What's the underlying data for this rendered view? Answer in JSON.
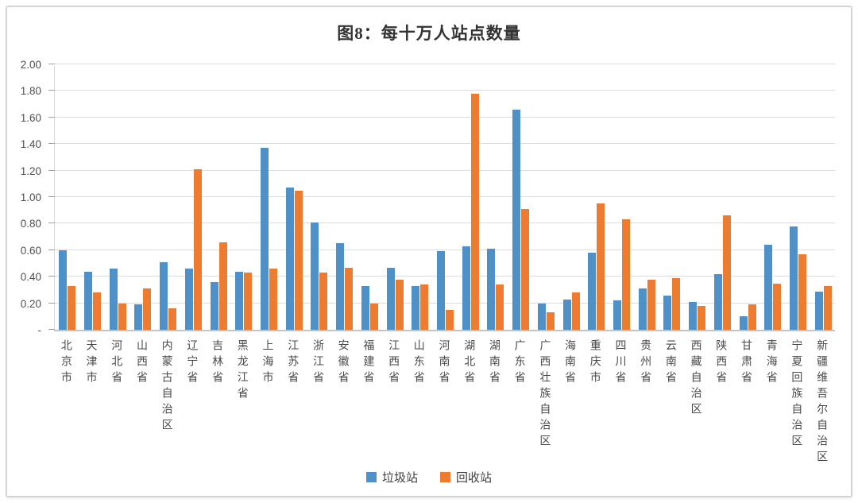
{
  "title": "图8：每十万人站点数量",
  "chart_data": {
    "type": "bar",
    "title": "图8：每十万人站点数量",
    "categories": [
      "北京市",
      "天津市",
      "河北省",
      "山西省",
      "内蒙古自治区",
      "辽宁省",
      "吉林省",
      "黑龙江省",
      "上海市",
      "江苏省",
      "浙江省",
      "安徽省",
      "福建省",
      "江西省",
      "山东省",
      "河南省",
      "湖北省",
      "湖南省",
      "广东省",
      "广西壮族自治区",
      "海南省",
      "重庆市",
      "四川省",
      "贵州省",
      "云南省",
      "西藏自治区",
      "陕西省",
      "甘肃省",
      "青海省",
      "宁夏回族自治区",
      "新疆维吾尔自治区"
    ],
    "series": [
      {
        "name": "垃圾站",
        "color": "#4E91C9",
        "values": [
          0.6,
          0.44,
          0.46,
          0.19,
          0.51,
          0.46,
          0.36,
          0.44,
          1.37,
          1.07,
          0.81,
          0.65,
          0.33,
          0.47,
          0.33,
          0.59,
          0.63,
          0.61,
          1.66,
          0.2,
          0.23,
          0.58,
          0.22,
          0.31,
          0.26,
          0.21,
          0.42,
          0.1,
          0.64,
          0.78,
          0.29
        ]
      },
      {
        "name": "回收站",
        "color": "#ED7C31",
        "values": [
          0.33,
          0.28,
          0.2,
          0.31,
          0.16,
          1.21,
          0.66,
          0.43,
          0.46,
          1.05,
          0.43,
          0.47,
          0.2,
          0.38,
          0.34,
          0.15,
          1.78,
          0.34,
          0.91,
          0.13,
          0.28,
          0.95,
          0.83,
          0.38,
          0.39,
          0.18,
          0.86,
          0.19,
          0.35,
          0.57,
          0.33
        ]
      }
    ],
    "xlabel": "",
    "ylabel": "",
    "ylim": [
      0,
      2.0
    ],
    "ytick_step": 0.2,
    "ytick_labels": [
      "2.00",
      "1.80",
      "1.60",
      "1.40",
      "1.20",
      "1.00",
      "0.80",
      "0.60",
      "0.40",
      "0.20",
      "-"
    ],
    "grid": true,
    "legend_position": "bottom"
  },
  "card": {
    "border_color": "#d4d4d4"
  }
}
